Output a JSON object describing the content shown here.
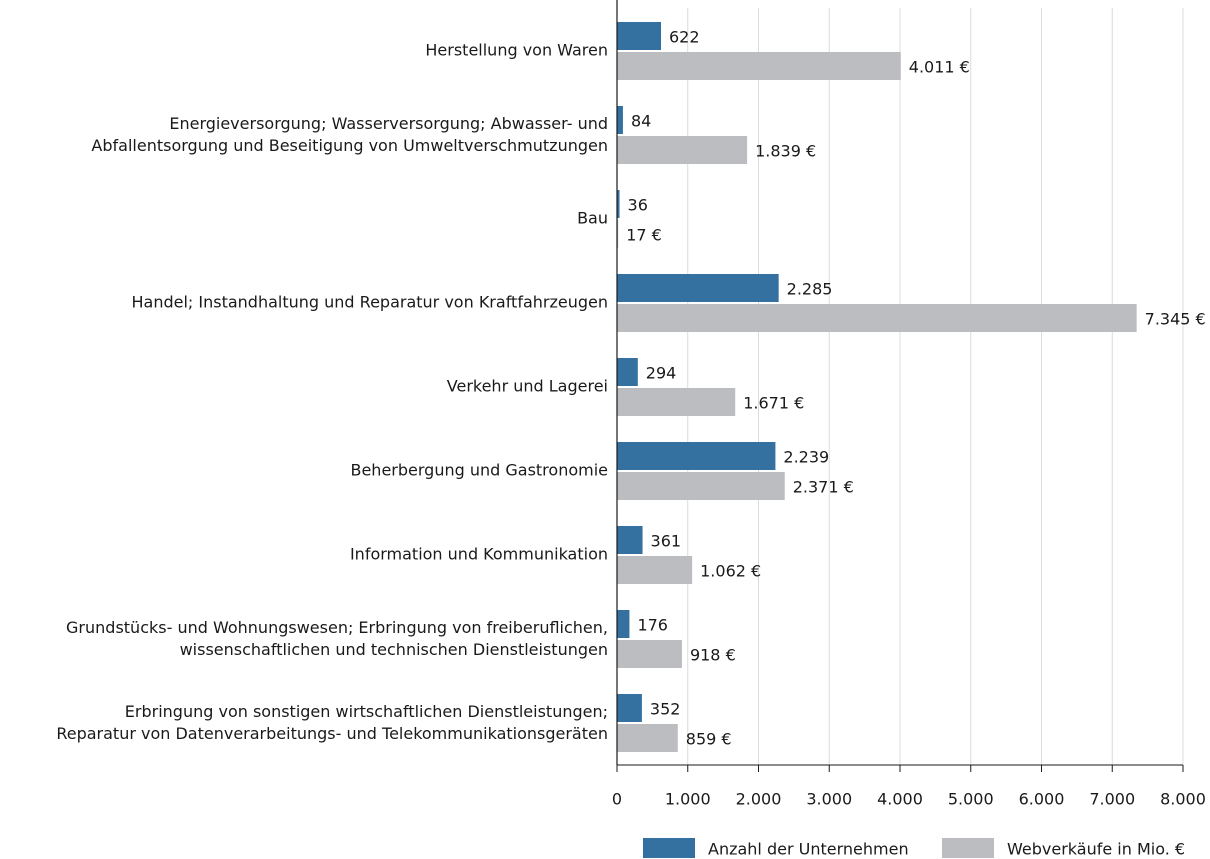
{
  "chart_data": {
    "type": "bar",
    "orientation": "horizontal",
    "categories": [
      "Herstellung von Waren",
      "Energieversorgung; Wasserversorgung; Abwasser- und\nAbfallentsorgung und Beseitigung von Umweltverschmutzungen",
      "Bau",
      "Handel; Instandhaltung und Reparatur von Kraftfahrzeugen",
      "Verkehr und Lagerei",
      "Beherbergung und Gastronomie",
      "Information und Kommunikation",
      "Grundstücks- und Wohnungswesen; Erbringung von freiberuflichen,\nwissenschaftlichen und technischen Dienstleistungen",
      "Erbringung von sonstigen wirtschaftlichen Dienstleistungen;\nReparatur von Datenverarbeitungs- und Telekommunikationsgeräten"
    ],
    "series": [
      {
        "name": "Anzahl der Unternehmen",
        "color": "#3571a0",
        "values": [
          622,
          84,
          36,
          2285,
          294,
          2239,
          361,
          176,
          352
        ],
        "value_labels": [
          "622",
          "84",
          "36",
          "2.285",
          "294",
          "2.239",
          "361",
          "176",
          "352"
        ]
      },
      {
        "name": "Webverkäufe in Mio. €",
        "color": "#bcbdc0",
        "values": [
          4011,
          1839,
          17,
          7345,
          1671,
          2371,
          1062,
          918,
          859
        ],
        "value_labels": [
          "4.011 €",
          "1.839 €",
          "17 €",
          "7.345 €",
          "1.671 €",
          "2.371 €",
          "1.062 €",
          "918 €",
          "859 €"
        ]
      }
    ],
    "xlim": [
      0,
      8000
    ],
    "xticks": [
      0,
      {
        "value": 1000,
        "label": "1.000"
      },
      {
        "value": 2000,
        "label": "2.000"
      },
      {
        "value": 3000,
        "label": "3.000"
      },
      {
        "value": 4000,
        "label": "4.000"
      },
      {
        "value": 5000,
        "label": "5.000"
      },
      {
        "value": 6000,
        "label": "6.000"
      },
      {
        "value": 7000,
        "label": "7.000"
      },
      {
        "value": 8000,
        "label": "8.000"
      }
    ],
    "grid": true,
    "legend": "bottom-right"
  }
}
